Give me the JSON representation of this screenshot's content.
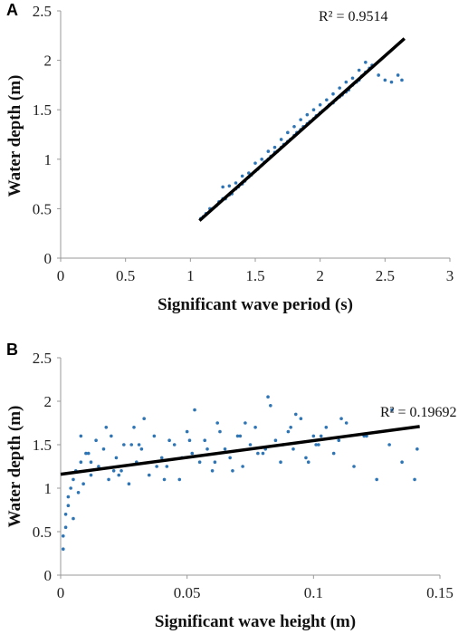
{
  "chart_data": [
    {
      "type": "scatter",
      "panel_label": "A",
      "title": "",
      "xlabel": "Significant wave period (s)",
      "ylabel": "Water depth (m)",
      "xlim": [
        0,
        3
      ],
      "ylim": [
        0,
        2.5
      ],
      "x_ticks": [
        "0",
        "0.5",
        "1",
        "1.5",
        "2",
        "2.5",
        "3"
      ],
      "y_ticks": [
        "0",
        "0.5",
        "1",
        "1.5",
        "2",
        "2.5"
      ],
      "grid": false,
      "point_color": "#2e75b6",
      "trendline": {
        "type": "linear",
        "x": [
          1.07,
          2.65
        ],
        "y": [
          0.38,
          2.22
        ],
        "color": "#000000",
        "label": "R² = 0.9514"
      },
      "series": [
        {
          "x": [
            1.08,
            1.1,
            1.12,
            1.15,
            1.17,
            1.2,
            1.22,
            1.25,
            1.27,
            1.3,
            1.32,
            1.35,
            1.37,
            1.4,
            1.42,
            1.45,
            1.47,
            1.5,
            1.52,
            1.55,
            1.57,
            1.6,
            1.62,
            1.65,
            1.67,
            1.7,
            1.72,
            1.75,
            1.77,
            1.8,
            1.82,
            1.85,
            1.87,
            1.9,
            1.92,
            1.95,
            1.97,
            2.0,
            2.02,
            2.05,
            2.07,
            2.1,
            2.12,
            2.15,
            2.17,
            2.2,
            2.22,
            2.25,
            2.28,
            2.3,
            2.32,
            2.35,
            2.38,
            2.4,
            2.45,
            2.5,
            2.55,
            2.6,
            2.63,
            1.25,
            1.3,
            1.35,
            1.4,
            1.45,
            1.5,
            1.55,
            1.6,
            1.65,
            1.7,
            1.75,
            1.8,
            1.85,
            1.9,
            1.95,
            2.0,
            2.05,
            2.1,
            2.15,
            2.2,
            2.25,
            2.3,
            2.35
          ],
          "y": [
            0.4,
            0.42,
            0.45,
            0.5,
            0.5,
            0.53,
            0.57,
            0.6,
            0.6,
            0.64,
            0.65,
            0.7,
            0.72,
            0.75,
            0.78,
            0.82,
            0.84,
            0.88,
            0.9,
            0.94,
            0.97,
            1.0,
            1.03,
            1.07,
            1.08,
            1.12,
            1.15,
            1.18,
            1.2,
            1.24,
            1.27,
            1.3,
            1.33,
            1.36,
            1.38,
            1.41,
            1.44,
            1.47,
            1.49,
            1.52,
            1.55,
            1.57,
            1.6,
            1.63,
            1.65,
            1.68,
            1.7,
            1.75,
            1.78,
            1.8,
            1.84,
            1.88,
            1.92,
            1.95,
            1.85,
            1.8,
            1.78,
            1.85,
            1.8,
            0.72,
            0.73,
            0.76,
            0.83,
            0.86,
            0.96,
            1.0,
            1.08,
            1.12,
            1.2,
            1.27,
            1.33,
            1.4,
            1.45,
            1.5,
            1.55,
            1.6,
            1.66,
            1.72,
            1.78,
            1.82,
            1.9,
            1.98
          ]
        }
      ]
    },
    {
      "type": "scatter",
      "panel_label": "B",
      "title": "",
      "xlabel": "Significant wave height (m)",
      "ylabel": "Water depth (m)",
      "xlim": [
        0,
        0.15
      ],
      "ylim": [
        0,
        2.5
      ],
      "x_ticks": [
        "0",
        "0.05",
        "0.1",
        "0.15"
      ],
      "y_ticks": [
        "0",
        "0.5",
        "1",
        "1.5",
        "2",
        "2.5"
      ],
      "grid": false,
      "point_color": "#2e75b6",
      "trendline": {
        "type": "linear",
        "x": [
          0,
          0.142
        ],
        "y": [
          1.16,
          1.71
        ],
        "color": "#000000",
        "label": "R² = 0.19692"
      },
      "series": [
        {
          "x": [
            0.001,
            0.001,
            0.002,
            0.002,
            0.003,
            0.003,
            0.004,
            0.005,
            0.005,
            0.006,
            0.007,
            0.008,
            0.009,
            0.01,
            0.012,
            0.014,
            0.015,
            0.017,
            0.019,
            0.02,
            0.022,
            0.024,
            0.025,
            0.027,
            0.029,
            0.03,
            0.032,
            0.035,
            0.037,
            0.04,
            0.042,
            0.045,
            0.047,
            0.05,
            0.052,
            0.055,
            0.057,
            0.06,
            0.062,
            0.065,
            0.067,
            0.07,
            0.072,
            0.075,
            0.077,
            0.08,
            0.082,
            0.085,
            0.087,
            0.09,
            0.092,
            0.095,
            0.097,
            0.1,
            0.102,
            0.105,
            0.108,
            0.11,
            0.113,
            0.116,
            0.12,
            0.125,
            0.13,
            0.135,
            0.14,
            0.141,
            0.008,
            0.012,
            0.018,
            0.023,
            0.028,
            0.033,
            0.038,
            0.043,
            0.048,
            0.053,
            0.058,
            0.063,
            0.068,
            0.073,
            0.078,
            0.083,
            0.088,
            0.093,
            0.098,
            0.103,
            0.011,
            0.021,
            0.031,
            0.041,
            0.051,
            0.061,
            0.071,
            0.081,
            0.091,
            0.101,
            0.111,
            0.121,
            0.131
          ],
          "y": [
            0.3,
            0.45,
            0.55,
            0.7,
            0.8,
            0.9,
            1.0,
            1.1,
            0.65,
            1.2,
            0.95,
            1.3,
            1.05,
            1.4,
            1.15,
            1.55,
            1.25,
            1.45,
            1.1,
            1.6,
            1.35,
            1.2,
            1.5,
            1.05,
            1.7,
            1.3,
            1.45,
            1.15,
            1.6,
            1.35,
            1.25,
            1.5,
            1.1,
            1.65,
            1.4,
            1.3,
            1.55,
            1.2,
            1.75,
            1.45,
            1.35,
            1.6,
            1.25,
            1.5,
            1.7,
            1.4,
            2.05,
            1.55,
            1.3,
            1.65,
            1.45,
            1.8,
            1.35,
            1.6,
            1.5,
            1.7,
            1.4,
            1.55,
            1.75,
            1.25,
            1.6,
            1.1,
            1.5,
            1.3,
            1.1,
            1.45,
            1.6,
            1.3,
            1.7,
            1.15,
            1.5,
            1.8,
            1.25,
            1.55,
            1.35,
            1.9,
            1.45,
            1.65,
            1.2,
            1.75,
            1.4,
            1.95,
            1.5,
            1.85,
            1.3,
            1.6,
            1.4,
            1.2,
            1.5,
            1.1,
            1.55,
            1.3,
            1.6,
            1.45,
            1.7,
            1.5,
            1.8,
            1.6,
            1.9
          ]
        }
      ]
    }
  ]
}
